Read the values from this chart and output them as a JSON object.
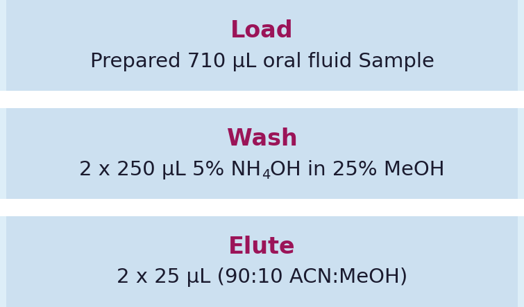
{
  "background_color": "#ddeef8",
  "box_color": "#cce0f0",
  "gap_color": "#ffffff",
  "title_color": "#9b1458",
  "body_color": "#1a1a2e",
  "boxes": [
    {
      "title": "Load",
      "body": "Prepared 710 μL oral fluid Sample",
      "has_subscript": false
    },
    {
      "title": "Wash",
      "body_pre": "2 x 250 μL 5% NH",
      "body_sub": "4",
      "body_post": "OH in 25% MeOH",
      "has_subscript": true
    },
    {
      "title": "Elute",
      "body": "2 x 25 μL (90:10 ACN:MeOH)",
      "has_subscript": false
    }
  ],
  "title_fontsize": 24,
  "body_fontsize": 21,
  "subscript_fontsize": 14,
  "figsize": [
    7.55,
    4.43
  ],
  "dpi": 100
}
